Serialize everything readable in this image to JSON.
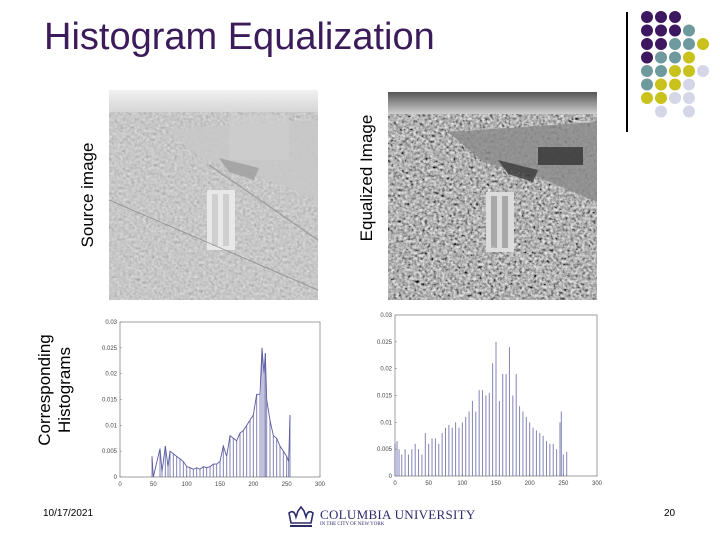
{
  "slide": {
    "title": "Histogram Equalization",
    "labels": {
      "source_image": "Source image",
      "equalized_image": "Equalized Image",
      "histograms_line1": "Corresponding",
      "histograms_line2": "Histograms"
    },
    "footer": {
      "date": "10/17/2021",
      "page": "20",
      "logo_text": "COLUMBIA UNIVERSITY",
      "logo_subtext": "IN THE CITY OF NEW YORK"
    },
    "decoration": {
      "colors": {
        "purple": "#3d1760",
        "teal": "#6e9a9e",
        "yellow": "#c9c21c",
        "lavender": "#d5d7e8"
      },
      "dot_grid": [
        [
          "P",
          "P",
          "P",
          "",
          ""
        ],
        [
          "P",
          "P",
          "P",
          "T",
          ""
        ],
        [
          "P",
          "P",
          "T",
          "T",
          "Y"
        ],
        [
          "P",
          "T",
          "T",
          "Y",
          ""
        ],
        [
          "T",
          "T",
          "Y",
          "Y",
          "L"
        ],
        [
          "T",
          "Y",
          "Y",
          "L",
          ""
        ],
        [
          "Y",
          "Y",
          "L",
          "L",
          ""
        ],
        [
          "",
          "L",
          "",
          "L",
          ""
        ]
      ]
    }
  },
  "chart_data": [
    {
      "type": "line",
      "xlim": [
        0,
        300
      ],
      "ylim": [
        0,
        0.03
      ],
      "xticks": [
        "0",
        "50",
        "100",
        "150",
        "200",
        "250",
        "300"
      ],
      "yticks": [
        "0",
        "0.005",
        "0.01",
        "0.015",
        "0.02",
        "0.025",
        "0.03"
      ],
      "color": "#5a5aa0",
      "points": [
        [
          48,
          0.004
        ],
        [
          50,
          0
        ],
        [
          60,
          0.0055
        ],
        [
          63,
          0.001
        ],
        [
          68,
          0.006
        ],
        [
          72,
          0.002
        ],
        [
          75,
          0.005
        ],
        [
          80,
          0.0045
        ],
        [
          85,
          0.004
        ],
        [
          90,
          0.0035
        ],
        [
          95,
          0.003
        ],
        [
          100,
          0.002
        ],
        [
          105,
          0.0018
        ],
        [
          110,
          0.0015
        ],
        [
          115,
          0.0018
        ],
        [
          120,
          0.0015
        ],
        [
          125,
          0.002
        ],
        [
          130,
          0.0018
        ],
        [
          135,
          0.002
        ],
        [
          140,
          0.0025
        ],
        [
          145,
          0.0025
        ],
        [
          150,
          0.003
        ],
        [
          155,
          0.006
        ],
        [
          160,
          0.004
        ],
        [
          165,
          0.008
        ],
        [
          170,
          0.0075
        ],
        [
          175,
          0.007
        ],
        [
          180,
          0.0085
        ],
        [
          185,
          0.009
        ],
        [
          190,
          0.01
        ],
        [
          195,
          0.011
        ],
        [
          200,
          0.012
        ],
        [
          205,
          0.016
        ],
        [
          210,
          0.016
        ],
        [
          213,
          0.025
        ],
        [
          216,
          0.02
        ],
        [
          218,
          0.024
        ],
        [
          220,
          0.015
        ],
        [
          225,
          0.011
        ],
        [
          230,
          0.008
        ],
        [
          235,
          0.0075
        ],
        [
          240,
          0.006
        ],
        [
          245,
          0.005
        ],
        [
          250,
          0.004
        ],
        [
          253,
          0.003
        ],
        [
          255,
          0.012
        ]
      ]
    },
    {
      "type": "line",
      "xlim": [
        0,
        300
      ],
      "ylim": [
        0,
        0.03
      ],
      "xticks": [
        "0",
        "50",
        "100",
        "150",
        "200",
        "250",
        "300"
      ],
      "yticks": [
        "0",
        "0.005",
        "0.01",
        "0.015",
        "0.02",
        "0.025",
        "0.03"
      ],
      "color": "#5a5aa0",
      "points": [
        [
          0,
          0.006
        ],
        [
          3,
          0.0065
        ],
        [
          6,
          0.005
        ],
        [
          10,
          0.004
        ],
        [
          15,
          0.005
        ],
        [
          20,
          0.004
        ],
        [
          25,
          0.005
        ],
        [
          30,
          0.006
        ],
        [
          35,
          0.005
        ],
        [
          40,
          0.004
        ],
        [
          45,
          0.008
        ],
        [
          50,
          0.006
        ],
        [
          55,
          0.007
        ],
        [
          60,
          0.007
        ],
        [
          65,
          0.006
        ],
        [
          70,
          0.008
        ],
        [
          75,
          0.009
        ],
        [
          80,
          0.0095
        ],
        [
          85,
          0.009
        ],
        [
          90,
          0.01
        ],
        [
          95,
          0.009
        ],
        [
          100,
          0.01
        ],
        [
          105,
          0.011
        ],
        [
          110,
          0.012
        ],
        [
          115,
          0.014
        ],
        [
          120,
          0.012
        ],
        [
          125,
          0.016
        ],
        [
          130,
          0.016
        ],
        [
          135,
          0.015
        ],
        [
          140,
          0.0155
        ],
        [
          145,
          0.021
        ],
        [
          150,
          0.025
        ],
        [
          155,
          0.014
        ],
        [
          160,
          0.019
        ],
        [
          165,
          0.019
        ],
        [
          170,
          0.024
        ],
        [
          175,
          0.015
        ],
        [
          180,
          0.019
        ],
        [
          185,
          0.013
        ],
        [
          190,
          0.012
        ],
        [
          195,
          0.011
        ],
        [
          200,
          0.01
        ],
        [
          205,
          0.009
        ],
        [
          210,
          0.0085
        ],
        [
          215,
          0.008
        ],
        [
          220,
          0.0075
        ],
        [
          225,
          0.0065
        ],
        [
          230,
          0.006
        ],
        [
          235,
          0.006
        ],
        [
          240,
          0.005
        ],
        [
          245,
          0.01
        ],
        [
          247,
          0.012
        ],
        [
          250,
          0.004
        ],
        [
          255,
          0.0045
        ]
      ]
    }
  ]
}
